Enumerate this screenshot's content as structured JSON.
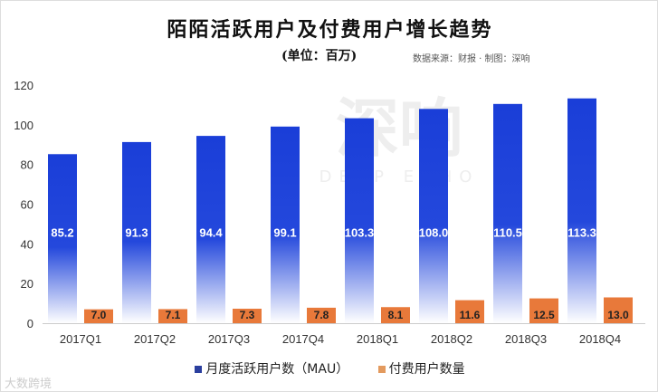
{
  "chart_data": {
    "type": "bar",
    "title": "陌陌活跃用户及付费用户增长趋势",
    "subtitle": "(单位：百万)",
    "source_note": "数据来源：财报 · 制图：深响",
    "categories": [
      "2017Q1",
      "2017Q2",
      "2017Q3",
      "2017Q4",
      "2018Q1",
      "2018Q2",
      "2018Q3",
      "2018Q4"
    ],
    "series": [
      {
        "name": "月度活跃用户数（MAU）",
        "color": "#1f3fd6",
        "values": [
          85.2,
          91.3,
          94.4,
          99.1,
          103.3,
          108.0,
          110.5,
          113.3
        ],
        "labels": [
          "85.2",
          "91.3",
          "94.4",
          "99.1",
          "103.3",
          "108.0",
          "110.5",
          "113.3"
        ]
      },
      {
        "name": "付费用户数量",
        "color": "#e8793a",
        "values": [
          7.0,
          7.1,
          7.3,
          7.8,
          8.1,
          11.6,
          12.5,
          13.0
        ],
        "labels": [
          "7.0",
          "7.1",
          "7.3",
          "7.8",
          "8.1",
          "11.6",
          "12.5",
          "13.0"
        ]
      }
    ],
    "yticks": [
      "0",
      "20",
      "40",
      "60",
      "80",
      "100",
      "120"
    ],
    "ylim": [
      0,
      120
    ],
    "grid": false,
    "legend": "bottom"
  },
  "watermarks": {
    "center": "深响 DEEP ECHO",
    "corner": "大数跨境"
  }
}
